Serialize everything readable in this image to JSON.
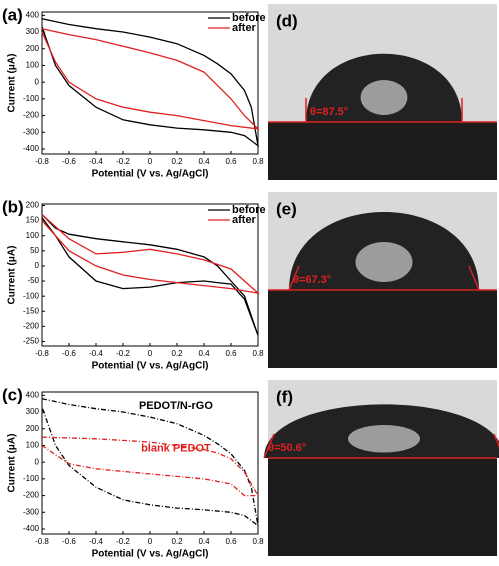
{
  "chart_data": [
    {
      "type": "line",
      "panel_label": "(a)",
      "x_label": "Potential (V vs. Ag/AgCl)",
      "y_label": "Current (μA)",
      "xlim": [
        -0.8,
        0.8
      ],
      "xticks": [
        -0.8,
        -0.6,
        -0.4,
        -0.2,
        0,
        0.2,
        0.4,
        0.6,
        0.8
      ],
      "ylim": [
        -430,
        420
      ],
      "yticks": [
        -400,
        -300,
        -200,
        -100,
        0,
        100,
        200,
        300,
        400
      ],
      "legend": "upper right",
      "series": [
        {
          "name": "before",
          "color": "#000000",
          "line_style": "solid",
          "x": [
            -0.8,
            -0.6,
            -0.4,
            -0.2,
            0,
            0.2,
            0.4,
            0.5,
            0.6,
            0.7,
            0.75,
            0.8,
            0.7,
            0.6,
            0.4,
            0.2,
            0,
            -0.2,
            -0.4,
            -0.6,
            -0.7,
            -0.8
          ],
          "values": [
            380,
            345,
            320,
            300,
            270,
            230,
            160,
            110,
            50,
            -50,
            -150,
            -380,
            -320,
            -300,
            -285,
            -275,
            -255,
            -225,
            -150,
            -20,
            100,
            330
          ]
        },
        {
          "name": "after",
          "color": "#e02020",
          "line_style": "solid",
          "x": [
            -0.8,
            -0.6,
            -0.4,
            -0.2,
            0,
            0.2,
            0.4,
            0.6,
            0.7,
            0.8,
            0.6,
            0.4,
            0.2,
            0,
            -0.2,
            -0.4,
            -0.6,
            -0.7,
            -0.8
          ],
          "values": [
            320,
            285,
            255,
            215,
            175,
            130,
            60,
            -100,
            -200,
            -280,
            -260,
            -230,
            -200,
            -180,
            -150,
            -100,
            0,
            120,
            300
          ]
        }
      ]
    },
    {
      "type": "line",
      "panel_label": "(b)",
      "x_label": "Potential (V vs. Ag/AgCl)",
      "y_label": "Current (μA)",
      "xlim": [
        -0.8,
        0.8
      ],
      "xticks": [
        -0.8,
        -0.6,
        -0.4,
        -0.2,
        0,
        0.2,
        0.4,
        0.6,
        0.8
      ],
      "ylim": [
        -265,
        205
      ],
      "yticks": [
        -250,
        -200,
        -150,
        -100,
        -50,
        0,
        50,
        100,
        150,
        200
      ],
      "legend": "upper right",
      "series": [
        {
          "name": "before",
          "color": "#000000",
          "line_style": "solid",
          "x": [
            -0.8,
            -0.7,
            -0.6,
            -0.4,
            -0.2,
            0,
            0.2,
            0.4,
            0.5,
            0.6,
            0.7,
            0.8,
            0.7,
            0.6,
            0.5,
            0.4,
            0.2,
            0,
            -0.2,
            -0.4,
            -0.6,
            -0.7,
            -0.8
          ],
          "values": [
            170,
            125,
            105,
            90,
            80,
            70,
            55,
            30,
            0,
            -50,
            -100,
            -230,
            -110,
            -60,
            -55,
            -50,
            -55,
            -70,
            -75,
            -50,
            30,
            100,
            160
          ]
        },
        {
          "name": "after",
          "color": "#e02020",
          "line_style": "solid",
          "x": [
            -0.8,
            -0.6,
            -0.4,
            -0.2,
            0,
            0.2,
            0.4,
            0.6,
            0.8,
            0.6,
            0.4,
            0.2,
            0,
            -0.2,
            -0.4,
            -0.6,
            -0.8
          ],
          "values": [
            170,
            90,
            40,
            45,
            55,
            40,
            20,
            -10,
            -90,
            -75,
            -65,
            -55,
            -45,
            -30,
            0,
            50,
            150
          ]
        }
      ]
    },
    {
      "type": "line",
      "panel_label": "(c)",
      "x_label": "Potential (V vs. Ag/AgCl)",
      "y_label": "Current (μA)",
      "xlim": [
        -0.8,
        0.8
      ],
      "xticks": [
        -0.8,
        -0.6,
        -0.4,
        -0.2,
        0,
        0.2,
        0.4,
        0.6,
        0.8
      ],
      "ylim": [
        -430,
        420
      ],
      "yticks": [
        -400,
        -300,
        -200,
        -100,
        0,
        100,
        200,
        300,
        400
      ],
      "annotations": [
        {
          "text": "PEDOT/N-rGO",
          "color": "#000000"
        },
        {
          "text": "blank PEDOT",
          "color": "#e02020"
        }
      ],
      "series": [
        {
          "color": "#000000",
          "line_style": "dashdot",
          "x": [
            -0.8,
            -0.6,
            -0.4,
            -0.2,
            0,
            0.2,
            0.4,
            0.5,
            0.6,
            0.7,
            0.75,
            0.8,
            0.7,
            0.6,
            0.4,
            0.2,
            0,
            -0.2,
            -0.4,
            -0.6,
            -0.7,
            -0.8
          ],
          "values": [
            380,
            345,
            320,
            300,
            270,
            230,
            160,
            110,
            50,
            -50,
            -150,
            -380,
            -320,
            -300,
            -285,
            -275,
            -255,
            -225,
            -150,
            -20,
            100,
            330
          ]
        },
        {
          "color": "#e02020",
          "line_style": "dashdot",
          "x": [
            -0.8,
            -0.6,
            -0.4,
            -0.2,
            0,
            0.2,
            0.4,
            0.5,
            0.6,
            0.7,
            0.8,
            0.7,
            0.6,
            0.4,
            0.2,
            0,
            -0.2,
            -0.4,
            -0.6,
            -0.8
          ],
          "values": [
            150,
            145,
            140,
            130,
            120,
            100,
            75,
            55,
            20,
            -60,
            -200,
            -200,
            -130,
            -100,
            -85,
            -70,
            -55,
            -40,
            -10,
            100
          ]
        }
      ]
    }
  ],
  "images": [
    {
      "label": "(d)",
      "angle": "θ=87.5°"
    },
    {
      "label": "(e)",
      "angle": "θ=67.3°"
    },
    {
      "label": "(f)",
      "angle": "θ=50.6°"
    }
  ]
}
